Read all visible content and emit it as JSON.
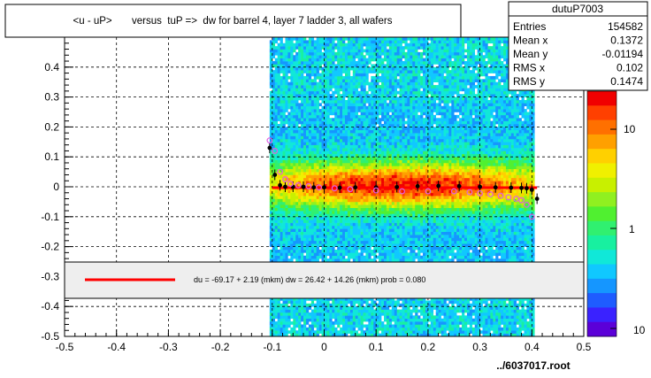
{
  "chart_data": {
    "type": "heatmap",
    "title": "<u - uP>       versus  tuP =>  dw for barrel 4, layer 7 ladder 3, all wafers",
    "xlim": [
      -0.5,
      0.5
    ],
    "ylim": [
      -0.5,
      0.5
    ],
    "x_ticks": [
      "-0.5",
      "-0.4",
      "-0.3",
      "-0.2",
      "-0.1",
      "0",
      "0.1",
      "0.2",
      "0.3",
      "0.4",
      "0.5"
    ],
    "y_ticks": [
      "-0.5",
      "-0.4",
      "-0.3",
      "-0.2",
      "-0.1",
      "0",
      "0.1",
      "0.2",
      "0.3",
      "0.4"
    ],
    "grid": true,
    "color_scale": "log",
    "colorbar_ticks": [
      "10",
      "1",
      "10"
    ],
    "stats": {
      "name": "dutuP7003",
      "rows": [
        {
          "label": "Entries",
          "value": "154582"
        },
        {
          "label": "Mean x",
          "value": "0.1372"
        },
        {
          "label": "Mean y",
          "value": "-0.01194"
        },
        {
          "label": "RMS x",
          "value": "0.102"
        },
        {
          "label": "RMS y",
          "value": "0.1474"
        }
      ]
    },
    "fit_legend": "du =  -69.17 +   2.19 (mkm) dw =   26.42 +  14.26 (mkm) prob = 0.080",
    "footer": "../6037017.root",
    "series": [
      {
        "marker": "black-filled",
        "x": [
          -0.105,
          -0.095,
          -0.085,
          -0.075,
          -0.06,
          -0.04,
          -0.02,
          0.0,
          0.03,
          0.06,
          0.1,
          0.14,
          0.18,
          0.22,
          0.26,
          0.3,
          0.33,
          0.36,
          0.38,
          0.39,
          0.4,
          0.41
        ],
        "y": [
          0.13,
          0.04,
          0.005,
          0.0,
          0.0,
          0.0,
          -0.002,
          -0.002,
          -0.003,
          -0.002,
          -0.002,
          -0.001,
          0.002,
          0.003,
          0.002,
          0.0,
          -0.002,
          -0.003,
          -0.004,
          -0.005,
          -0.01,
          -0.04
        ]
      },
      {
        "marker": "pink-open",
        "x": [
          -0.105,
          -0.095,
          -0.085,
          -0.075,
          -0.065,
          -0.05,
          -0.03,
          -0.01,
          0.02,
          0.05,
          0.1,
          0.15,
          0.2,
          0.25,
          0.28,
          0.3,
          0.32,
          0.34,
          0.355,
          0.37,
          0.38,
          0.39,
          0.4
        ],
        "y": [
          0.155,
          0.12,
          0.05,
          0.025,
          0.01,
          0.005,
          0.002,
          -0.002,
          -0.005,
          -0.008,
          -0.012,
          -0.015,
          -0.015,
          -0.015,
          -0.018,
          -0.022,
          -0.025,
          -0.03,
          -0.035,
          -0.04,
          -0.045,
          -0.06,
          -0.1
        ]
      }
    ],
    "fit_line": {
      "x": [
        -0.1,
        0.41
      ],
      "y": [
        -0.003,
        -0.003
      ],
      "color": "#ff0000"
    }
  }
}
